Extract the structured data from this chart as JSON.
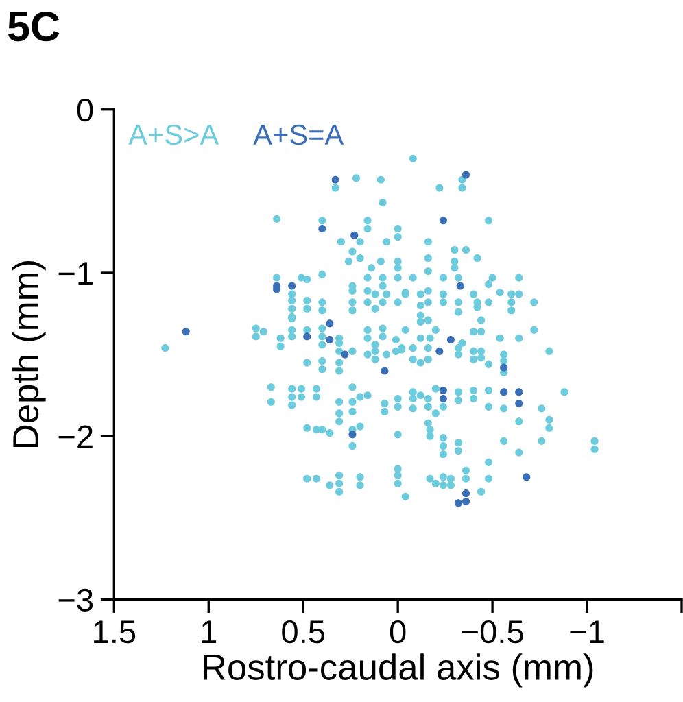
{
  "chart_data": {
    "type": "scatter",
    "title": "5C",
    "xlabel": "Rostro-caudal axis (mm)",
    "ylabel": "Depth (mm)",
    "xlim": [
      1.5,
      -1.5
    ],
    "ylim": [
      -3,
      0
    ],
    "xticks": [
      1.5,
      1,
      0.5,
      0,
      {
        "value": -0.5,
        "label": "−0.5"
      },
      {
        "value": -1,
        "label": "−1"
      },
      {
        "value": -1.5,
        "label": null
      }
    ],
    "yticks": [
      0,
      {
        "value": -1,
        "label": "−1"
      },
      {
        "value": -2,
        "label": "−2"
      },
      {
        "value": -3,
        "label": "−3"
      }
    ],
    "grid": false,
    "legend": "top left",
    "marker": "circle",
    "series": [
      {
        "name": "A+S>A",
        "color": "#6ccbdc",
        "x": [
          0.22,
          0.09,
          0.33,
          0.08,
          0.64,
          0.4,
          0.16,
          0.16,
          0.0,
          0.0,
          0.3,
          0.2,
          0.06,
          0.24,
          0.2,
          0.26,
          0.09,
          0.0,
          0.14,
          0.4,
          0.64,
          0.51,
          0.48,
          0.16,
          0.08,
          0.0,
          0.24,
          0.08,
          0.56,
          0.24,
          0.16,
          0.12,
          0.06,
          -0.04,
          0.56,
          0.48,
          0.4,
          0.24,
          0.16,
          0.08,
          0.0,
          0.56,
          0.48,
          0.4,
          0.24,
          0.12,
          0.56,
          -0.08,
          -0.34,
          -0.22,
          -0.34,
          -0.48,
          -0.16,
          -0.3,
          -0.36,
          -0.16,
          -0.3,
          -0.42,
          0.0,
          -0.3,
          -0.16,
          -0.08,
          -0.24,
          -0.32,
          -0.5,
          -0.64,
          -0.48,
          -0.04,
          -0.12,
          -0.16,
          -0.24,
          -0.4,
          -0.54,
          -0.6,
          -0.64,
          -0.16,
          -0.24,
          -0.32,
          -0.42,
          -0.48,
          -0.6,
          -0.72,
          -0.12,
          -0.42,
          -0.32,
          -0.6,
          -0.12,
          -0.16,
          -0.44,
          1.23,
          0.75,
          0.71,
          0.75,
          0.62,
          0.62,
          0.56,
          0.56,
          0.56,
          0.48,
          0.4,
          0.4,
          0.4,
          0.31,
          0.31,
          0.31,
          0.24,
          0.16,
          0.16,
          0.16,
          0.12,
          0.12,
          0.12,
          0.08,
          0.08,
          0.06,
          0.01,
          0.01,
          -0.02,
          -0.04,
          0.48,
          0.4,
          0.4,
          0.31,
          0.31,
          0.67,
          0.67,
          0.56,
          0.51,
          0.56,
          0.51,
          0.56,
          0.43,
          0.43,
          0.31,
          0.31,
          0.31,
          0.24,
          0.24,
          0.24,
          0.2,
          0.16,
          0.07,
          0.07,
          0.0,
          0.0,
          0.48,
          0.43,
          0.4,
          0.36,
          0.24,
          0.2,
          0.24,
          0.0,
          0.48,
          0.43,
          0.31,
          0.31,
          0.36,
          0.31,
          0.2,
          0.2,
          0.0,
          0.0,
          0.0,
          -0.04,
          -0.72,
          -0.12,
          -0.2,
          -0.4,
          -0.44,
          -0.54,
          -0.64,
          -0.12,
          -0.17,
          -0.34,
          -0.02,
          -0.08,
          -0.16,
          -0.32,
          -0.32,
          -0.4,
          -0.44,
          -0.4,
          -0.44,
          -0.56,
          -0.56,
          -0.56,
          -0.48,
          -0.8,
          -0.08,
          -0.12,
          -0.16,
          -0.2,
          -0.08,
          -0.08,
          -0.12,
          -0.16,
          -0.32,
          -0.32,
          -0.4,
          -0.4,
          -0.48,
          -0.48,
          -0.56,
          -0.08,
          -0.16,
          -0.2,
          -0.24,
          -0.76,
          -0.88,
          -0.8,
          -0.8,
          -0.64,
          -0.16,
          -0.17,
          -0.17,
          -0.24,
          -0.24,
          -0.24,
          -0.32,
          -0.32,
          -0.56,
          -0.76,
          -0.64,
          -1.04,
          -1.04,
          -0.48,
          -0.36,
          -0.36,
          -0.48,
          -0.17,
          -0.24,
          -0.28,
          -0.2,
          -0.24,
          -0.28,
          -0.44
        ],
        "values": [
          -0.42,
          -0.43,
          -0.48,
          -0.57,
          -0.67,
          -0.68,
          -0.68,
          -0.73,
          -0.73,
          -0.78,
          -0.81,
          -0.81,
          -0.81,
          -0.87,
          -0.91,
          -0.93,
          -0.93,
          -0.93,
          -0.97,
          -1.01,
          -1.03,
          -1.03,
          -1.04,
          -1.03,
          -1.03,
          -1.03,
          -1.08,
          -1.08,
          -1.13,
          -1.11,
          -1.11,
          -1.13,
          -1.13,
          -1.13,
          -1.17,
          -1.17,
          -1.18,
          -1.18,
          -1.18,
          -1.18,
          -1.18,
          -1.22,
          -1.22,
          -1.23,
          -1.23,
          -1.22,
          -1.27,
          -0.3,
          -0.43,
          -0.48,
          -0.48,
          -0.68,
          -0.81,
          -0.86,
          -0.86,
          -0.91,
          -0.93,
          -0.91,
          -0.97,
          -0.97,
          -0.99,
          -1.03,
          -1.03,
          -1.03,
          -1.03,
          -1.03,
          -1.07,
          -1.12,
          -1.13,
          -1.11,
          -1.13,
          -1.13,
          -1.12,
          -1.13,
          -1.13,
          -1.18,
          -1.18,
          -1.18,
          -1.18,
          -1.18,
          -1.18,
          -1.18,
          -1.2,
          -1.21,
          -1.24,
          -1.23,
          -1.26,
          -1.29,
          -1.29,
          -1.46,
          -1.34,
          -1.36,
          -1.39,
          -1.4,
          -1.45,
          -1.28,
          -1.35,
          -1.39,
          -1.35,
          -1.34,
          -1.39,
          -1.44,
          -1.4,
          -1.43,
          -1.48,
          -1.48,
          -1.35,
          -1.4,
          -1.5,
          -1.44,
          -1.48,
          -1.53,
          -1.34,
          -1.39,
          -1.5,
          -1.41,
          -1.48,
          -1.47,
          -1.35,
          -1.55,
          -1.54,
          -1.59,
          -1.55,
          -1.6,
          -1.7,
          -1.79,
          -1.71,
          -1.71,
          -1.76,
          -1.76,
          -1.81,
          -1.71,
          -1.76,
          -1.79,
          -1.86,
          -1.91,
          -1.7,
          -1.79,
          -1.85,
          -1.76,
          -1.75,
          -1.8,
          -1.85,
          -1.77,
          -1.82,
          -1.95,
          -1.96,
          -1.96,
          -1.98,
          -1.96,
          -1.94,
          -2.06,
          -1.99,
          -2.26,
          -2.26,
          -2.24,
          -2.29,
          -2.3,
          -2.34,
          -2.25,
          -2.3,
          -2.2,
          -2.24,
          -2.29,
          -2.37,
          -1.35,
          -1.3,
          -1.35,
          -1.36,
          -1.36,
          -1.4,
          -1.4,
          -1.4,
          -1.4,
          -1.43,
          -1.46,
          -1.46,
          -1.46,
          -1.46,
          -1.5,
          -1.48,
          -1.48,
          -1.53,
          -1.52,
          -1.5,
          -1.54,
          -1.61,
          -1.56,
          -1.48,
          -1.53,
          -1.55,
          -1.53,
          -1.71,
          -1.73,
          -1.77,
          -1.75,
          -1.77,
          -1.73,
          -1.78,
          -1.72,
          -1.77,
          -1.72,
          -1.82,
          -1.83,
          -1.83,
          -1.82,
          -1.86,
          -1.82,
          -1.83,
          -1.73,
          -1.9,
          -1.95,
          -1.91,
          -1.92,
          -1.96,
          -2.0,
          -2.01,
          -2.06,
          -2.11,
          -2.04,
          -2.09,
          -2.03,
          -2.03,
          -2.1,
          -2.03,
          -2.08,
          -2.16,
          -2.21,
          -2.26,
          -2.26,
          -2.26,
          -2.25,
          -2.26,
          -2.29,
          -2.3,
          -2.3,
          -2.34
        ]
      },
      {
        "name": "A+S=A",
        "color": "#3a6fb8",
        "x": [
          1.12,
          0.64,
          0.64,
          0.56,
          0.33,
          0.4,
          0.23,
          -0.36,
          -0.24,
          -0.33,
          0.36,
          0.48,
          0.36,
          0.28,
          0.07,
          0.24,
          -0.28,
          -0.22,
          -0.56,
          -0.24,
          -0.24,
          -0.56,
          -0.64,
          -0.64,
          -0.68,
          -0.36,
          -0.36,
          -0.32
        ],
        "values": [
          -1.36,
          -1.08,
          -1.1,
          -1.08,
          -0.43,
          -0.73,
          -0.77,
          -0.4,
          -0.68,
          -1.08,
          -1.31,
          -1.39,
          -1.41,
          -1.5,
          -1.6,
          -1.99,
          -1.41,
          -1.48,
          -1.58,
          -1.72,
          -1.77,
          -1.73,
          -1.73,
          -1.8,
          -2.25,
          -2.35,
          -2.4,
          -2.41
        ]
      }
    ]
  }
}
